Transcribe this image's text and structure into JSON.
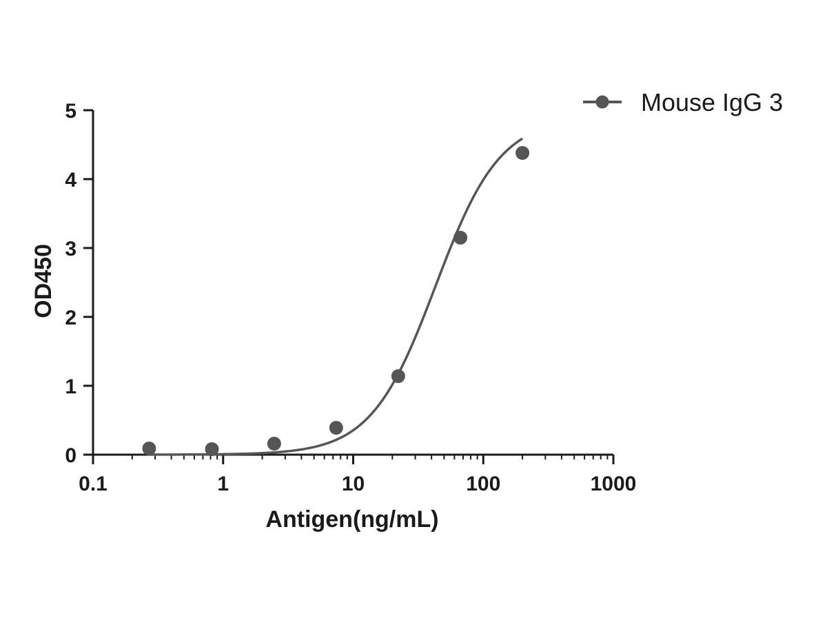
{
  "chart_data": {
    "type": "scatter",
    "title": "",
    "xlabel": "Antigen(ng/mL)",
    "ylabel": "OD450",
    "xscale": "log",
    "xlim": [
      0.1,
      1000
    ],
    "ylim": [
      0,
      5
    ],
    "x_ticks": [
      0.1,
      1,
      10,
      100,
      1000
    ],
    "x_tick_labels": [
      "0.1",
      "1",
      "10",
      "100",
      "1000"
    ],
    "y_ticks": [
      0,
      1,
      2,
      3,
      4,
      5
    ],
    "y_tick_labels": [
      "0",
      "1",
      "2",
      "3",
      "4",
      "5"
    ],
    "legend_position": "top-right",
    "grid": false,
    "series": [
      {
        "name": "Mouse IgG 3",
        "color": "#555555",
        "x": [
          0.27,
          0.82,
          2.47,
          7.4,
          22.2,
          66.7,
          200
        ],
        "y": [
          0.09,
          0.08,
          0.16,
          0.39,
          1.14,
          3.15,
          4.38
        ],
        "fit": {
          "model": "4PL",
          "bottom": 0.0,
          "top": 4.9,
          "ec50": 43,
          "hill": 1.75,
          "x_range": [
            0.27,
            200
          ]
        }
      }
    ]
  }
}
